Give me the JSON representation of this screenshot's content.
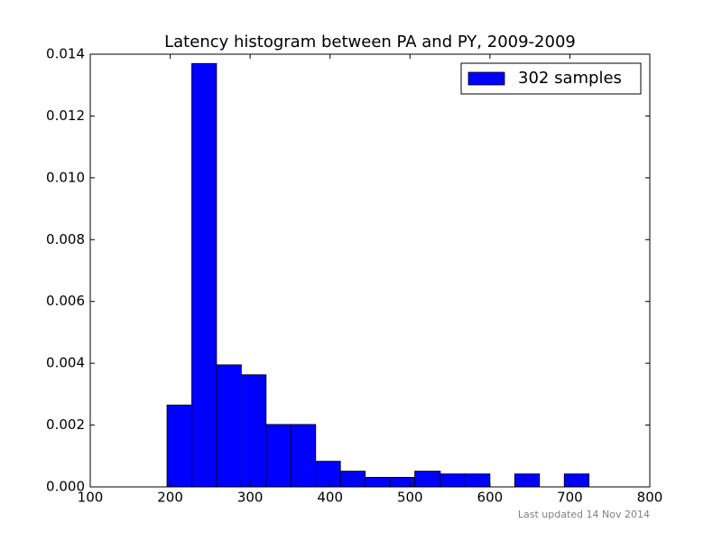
{
  "chart_data": {
    "type": "histogram",
    "title": "Latency histogram between PA and PY, 2009-2009",
    "bins": [
      196,
      227,
      258,
      289,
      320,
      351,
      382,
      413,
      444,
      475,
      506,
      538,
      569,
      600,
      631,
      662,
      693,
      724
    ],
    "series": [
      {
        "name": "302 samples",
        "color": "#0000ff",
        "values": [
          0.00265,
          0.0137,
          0.00395,
          0.00363,
          0.00202,
          0.00202,
          0.00083,
          0.00051,
          0.00031,
          0.00031,
          0.00051,
          0.00042,
          0.00042,
          0,
          0.00042,
          0,
          0.00042
        ]
      }
    ],
    "xlim": [
      100,
      800
    ],
    "xticks": [
      100,
      200,
      300,
      400,
      500,
      600,
      700,
      800
    ],
    "ylim": [
      0,
      0.014
    ],
    "yticks": [
      {
        "value": 0,
        "label": "0.000"
      },
      {
        "value": 0.002,
        "label": "0.002"
      },
      {
        "value": 0.004,
        "label": "0.004"
      },
      {
        "value": 0.006,
        "label": "0.006"
      },
      {
        "value": 0.008,
        "label": "0.008"
      },
      {
        "value": 0.01,
        "label": "0.010"
      },
      {
        "value": 0.012,
        "label": "0.012"
      },
      {
        "value": 0.014,
        "label": "0.014"
      }
    ],
    "legend": "upper right",
    "footnote": "Last updated 14 Nov 2014"
  }
}
